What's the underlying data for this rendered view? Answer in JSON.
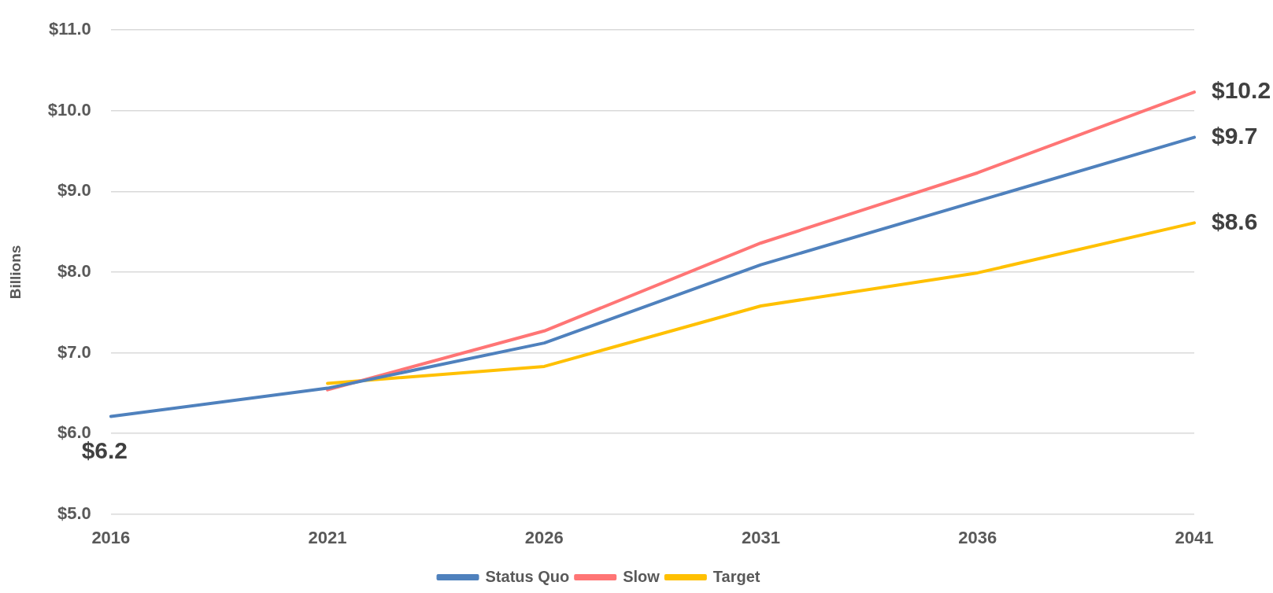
{
  "chart_data": {
    "type": "line",
    "ylabel": "Billions",
    "categories": [
      "2016",
      "2021",
      "2026",
      "2031",
      "2036",
      "2041"
    ],
    "series": [
      {
        "name": "Status Quo",
        "color": "#4f81bd",
        "values": [
          6.21,
          6.56,
          7.12,
          8.09,
          8.88,
          9.67
        ],
        "value_labels": [
          "$6.2",
          null,
          null,
          null,
          null,
          "$9.7"
        ]
      },
      {
        "name": "Slow",
        "color": "#ff7575",
        "values": [
          null,
          6.54,
          7.27,
          8.36,
          9.23,
          10.23
        ],
        "value_labels": [
          null,
          null,
          null,
          null,
          null,
          "$10.2"
        ]
      },
      {
        "name": "Target",
        "color": "#ffc000",
        "values": [
          null,
          6.62,
          6.83,
          7.58,
          7.99,
          8.61
        ],
        "value_labels": [
          null,
          null,
          null,
          null,
          null,
          "$8.6"
        ]
      }
    ],
    "ylim": [
      5,
      11
    ],
    "yticks": [
      {
        "value": 5,
        "label": "$5.0"
      },
      {
        "value": 6,
        "label": "$6.0"
      },
      {
        "value": 7,
        "label": "$7.0"
      },
      {
        "value": 8,
        "label": "$8.0"
      },
      {
        "value": 9,
        "label": "$9.0"
      },
      {
        "value": 10,
        "label": "$10.0"
      },
      {
        "value": 11,
        "label": "$11.0"
      }
    ],
    "grid": "y",
    "legend": "bottom",
    "marker": "none",
    "line_style": "solid"
  }
}
